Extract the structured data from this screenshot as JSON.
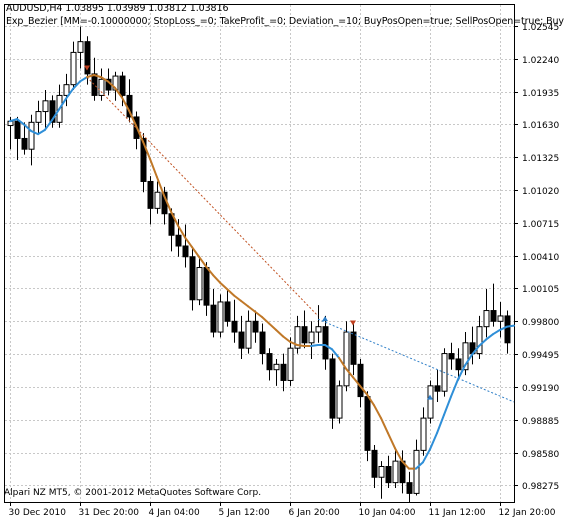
{
  "header": {
    "symbol_line": "AUDUSD,H4  1.03895 1.03989 1.03812 1.03816",
    "expert_line": "Exp_Bezier [MM=-0.10000000; StopLoss_=0; TakeProfit_=0; Deviation_=10; BuyPosOpen=true; SellPosOpen=true; Buy"
  },
  "footer": "Alpari NZ MT5, © 2001-2012 MetaQuotes Software Corp.",
  "colors": {
    "background": "#ffffff",
    "grid": "#c8c8c8",
    "bull_candle_fill": "#ffffff",
    "bear_candle_fill": "#000000",
    "candle_outline": "#000000",
    "bezier_up": "#2f8fd8",
    "bezier_down": "#c07828",
    "forecast_down": "#c05020",
    "forecast_up": "#2f7fc8",
    "sell_arrow": "#c04020",
    "buy_arrow": "#2f7fc8"
  },
  "chart_data": {
    "type": "candlestick",
    "symbol": "AUDUSD",
    "timeframe": "H4",
    "ylim": [
      0.9812,
      1.0275
    ],
    "y_ticks": [
      1.02545,
      1.0224,
      1.01935,
      1.0163,
      1.01325,
      1.0102,
      1.00715,
      1.0041,
      1.00105,
      0.998,
      0.99495,
      0.9919,
      0.98885,
      0.9858,
      0.98275
    ],
    "y_tick_labels": [
      "1.02545",
      "1.02240",
      "1.01935",
      "1.01630",
      "1.01325",
      "1.01020",
      "1.00715",
      "1.00410",
      "1.00105",
      "0.99800",
      "0.99495",
      "0.99190",
      "0.98885",
      "0.98580",
      "0.98275"
    ],
    "x_ticks": [
      {
        "index": 0,
        "label": "30 Dec 2010"
      },
      {
        "index": 10,
        "label": "31 Dec 20:00"
      },
      {
        "index": 20,
        "label": "4 Jan 04:00"
      },
      {
        "index": 30,
        "label": "5 Jan 12:00"
      },
      {
        "index": 40,
        "label": "6 Jan 20:00"
      },
      {
        "index": 50,
        "label": "10 Jan 04:00"
      },
      {
        "index": 60,
        "label": "11 Jan 12:00"
      },
      {
        "index": 70,
        "label": "12 Jan 20:00"
      }
    ],
    "candles": [
      {
        "o": 1.0162,
        "h": 1.017,
        "l": 1.014,
        "c": 1.0166
      },
      {
        "o": 1.0166,
        "h": 1.017,
        "l": 1.013,
        "c": 1.015
      },
      {
        "o": 1.015,
        "h": 1.0165,
        "l": 1.0135,
        "c": 1.014
      },
      {
        "o": 1.014,
        "h": 1.0172,
        "l": 1.0125,
        "c": 1.0165
      },
      {
        "o": 1.0165,
        "h": 1.0185,
        "l": 1.0155,
        "c": 1.0175
      },
      {
        "o": 1.0175,
        "h": 1.0195,
        "l": 1.016,
        "c": 1.0185
      },
      {
        "o": 1.0185,
        "h": 1.019,
        "l": 1.016,
        "c": 1.0165
      },
      {
        "o": 1.0165,
        "h": 1.02,
        "l": 1.016,
        "c": 1.019
      },
      {
        "o": 1.019,
        "h": 1.021,
        "l": 1.018,
        "c": 1.02
      },
      {
        "o": 1.02,
        "h": 1.024,
        "l": 1.0195,
        "c": 1.023
      },
      {
        "o": 1.023,
        "h": 1.0254,
        "l": 1.0215,
        "c": 1.024
      },
      {
        "o": 1.024,
        "h": 1.0245,
        "l": 1.02,
        "c": 1.021
      },
      {
        "o": 1.021,
        "h": 1.0225,
        "l": 1.0185,
        "c": 1.019
      },
      {
        "o": 1.019,
        "h": 1.0215,
        "l": 1.0185,
        "c": 1.0205
      },
      {
        "o": 1.0205,
        "h": 1.0215,
        "l": 1.019,
        "c": 1.0195
      },
      {
        "o": 1.0195,
        "h": 1.0212,
        "l": 1.0185,
        "c": 1.0208
      },
      {
        "o": 1.0208,
        "h": 1.0212,
        "l": 1.018,
        "c": 1.019
      },
      {
        "o": 1.019,
        "h": 1.0205,
        "l": 1.0165,
        "c": 1.017
      },
      {
        "o": 1.017,
        "h": 1.0175,
        "l": 1.014,
        "c": 1.015
      },
      {
        "o": 1.015,
        "h": 1.0155,
        "l": 1.01,
        "c": 1.011
      },
      {
        "o": 1.011,
        "h": 1.0115,
        "l": 1.007,
        "c": 1.0085
      },
      {
        "o": 1.0085,
        "h": 1.011,
        "l": 1.008,
        "c": 1.01
      },
      {
        "o": 1.01,
        "h": 1.0105,
        "l": 1.007,
        "c": 1.008
      },
      {
        "o": 1.008,
        "h": 1.0085,
        "l": 1.0045,
        "c": 1.006
      },
      {
        "o": 1.006,
        "h": 1.0075,
        "l": 1.004,
        "c": 1.005
      },
      {
        "o": 1.005,
        "h": 1.007,
        "l": 1.003,
        "c": 1.004
      },
      {
        "o": 1.004,
        "h": 1.0048,
        "l": 0.999,
        "c": 1.0
      },
      {
        "o": 1.0,
        "h": 1.004,
        "l": 0.9995,
        "c": 1.003
      },
      {
        "o": 1.003,
        "h": 1.0035,
        "l": 0.9985,
        "c": 0.9995
      },
      {
        "o": 0.9995,
        "h": 1.001,
        "l": 0.9965,
        "c": 0.997
      },
      {
        "o": 0.997,
        "h": 1.0005,
        "l": 0.9965,
        "c": 0.9998
      },
      {
        "o": 0.9998,
        "h": 1.001,
        "l": 0.9975,
        "c": 0.998
      },
      {
        "o": 0.998,
        "h": 1.0,
        "l": 0.996,
        "c": 0.997
      },
      {
        "o": 0.997,
        "h": 0.9985,
        "l": 0.9945,
        "c": 0.9955
      },
      {
        "o": 0.9955,
        "h": 0.999,
        "l": 0.995,
        "c": 0.998
      },
      {
        "o": 0.998,
        "h": 0.999,
        "l": 0.996,
        "c": 0.997
      },
      {
        "o": 0.997,
        "h": 0.9978,
        "l": 0.994,
        "c": 0.995
      },
      {
        "o": 0.995,
        "h": 0.9955,
        "l": 0.9925,
        "c": 0.9935
      },
      {
        "o": 0.9935,
        "h": 0.9945,
        "l": 0.992,
        "c": 0.994
      },
      {
        "o": 0.994,
        "h": 0.995,
        "l": 0.9915,
        "c": 0.9925
      },
      {
        "o": 0.9925,
        "h": 0.9965,
        "l": 0.992,
        "c": 0.9955
      },
      {
        "o": 0.9955,
        "h": 0.9985,
        "l": 0.995,
        "c": 0.9975
      },
      {
        "o": 0.9975,
        "h": 0.999,
        "l": 0.9955,
        "c": 0.996
      },
      {
        "o": 0.996,
        "h": 0.998,
        "l": 0.9945,
        "c": 0.997
      },
      {
        "o": 0.997,
        "h": 0.9995,
        "l": 0.996,
        "c": 0.9975
      },
      {
        "o": 0.9975,
        "h": 0.9985,
        "l": 0.9935,
        "c": 0.9945
      },
      {
        "o": 0.9945,
        "h": 0.995,
        "l": 0.988,
        "c": 0.989
      },
      {
        "o": 0.989,
        "h": 0.9925,
        "l": 0.9885,
        "c": 0.992
      },
      {
        "o": 0.992,
        "h": 0.998,
        "l": 0.9915,
        "c": 0.997
      },
      {
        "o": 0.997,
        "h": 0.9978,
        "l": 0.993,
        "c": 0.994
      },
      {
        "o": 0.994,
        "h": 0.9945,
        "l": 0.99,
        "c": 0.991
      },
      {
        "o": 0.991,
        "h": 0.9915,
        "l": 0.985,
        "c": 0.986
      },
      {
        "o": 0.986,
        "h": 0.9865,
        "l": 0.9825,
        "c": 0.9835
      },
      {
        "o": 0.9835,
        "h": 0.985,
        "l": 0.9815,
        "c": 0.9845
      },
      {
        "o": 0.9845,
        "h": 0.9855,
        "l": 0.9825,
        "c": 0.983
      },
      {
        "o": 0.983,
        "h": 0.986,
        "l": 0.9825,
        "c": 0.985
      },
      {
        "o": 0.985,
        "h": 0.986,
        "l": 0.982,
        "c": 0.983
      },
      {
        "o": 0.983,
        "h": 0.984,
        "l": 0.9812,
        "c": 0.982
      },
      {
        "o": 0.982,
        "h": 0.987,
        "l": 0.9818,
        "c": 0.986
      },
      {
        "o": 0.986,
        "h": 0.99,
        "l": 0.9855,
        "c": 0.989
      },
      {
        "o": 0.989,
        "h": 0.9925,
        "l": 0.9885,
        "c": 0.992
      },
      {
        "o": 0.992,
        "h": 0.9935,
        "l": 0.9905,
        "c": 0.9915
      },
      {
        "o": 0.9915,
        "h": 0.9955,
        "l": 0.991,
        "c": 0.995
      },
      {
        "o": 0.995,
        "h": 0.996,
        "l": 0.9935,
        "c": 0.9945
      },
      {
        "o": 0.9945,
        "h": 0.9955,
        "l": 0.9925,
        "c": 0.9935
      },
      {
        "o": 0.9935,
        "h": 0.997,
        "l": 0.993,
        "c": 0.996
      },
      {
        "o": 0.996,
        "h": 0.9975,
        "l": 0.994,
        "c": 0.995
      },
      {
        "o": 0.995,
        "h": 0.9985,
        "l": 0.9945,
        "c": 0.9975
      },
      {
        "o": 0.9975,
        "h": 1.001,
        "l": 0.9965,
        "c": 0.999
      },
      {
        "o": 0.999,
        "h": 1.0015,
        "l": 0.9975,
        "c": 0.998
      },
      {
        "o": 0.998,
        "h": 0.9998,
        "l": 0.9965,
        "c": 0.9985
      },
      {
        "o": 0.9985,
        "h": 0.999,
        "l": 0.995,
        "c": 0.996
      }
    ],
    "bezier_line": [
      1.0166,
      1.0168,
      1.0163,
      1.0157,
      1.0154,
      1.0158,
      1.0167,
      1.0177,
      1.0187,
      1.0196,
      1.0203,
      1.0207,
      1.0209,
      1.0207,
      1.0203,
      1.0197,
      1.0188,
      1.0176,
      1.0162,
      1.0147,
      1.0131,
      1.0114,
      1.0097,
      1.0082,
      1.0069,
      1.0058,
      1.0049,
      1.004,
      1.0031,
      1.0023,
      1.0016,
      1.001,
      1.0004,
      0.9999,
      0.9994,
      0.9989,
      0.9984,
      0.9978,
      0.9972,
      0.9966,
      0.9961,
      0.9958,
      0.9957,
      0.9957,
      0.9958,
      0.9958,
      0.9954,
      0.9946,
      0.9936,
      0.9928,
      0.992,
      0.9912,
      0.9902,
      0.989,
      0.9876,
      0.9862,
      0.985,
      0.9843,
      0.9843,
      0.9849,
      0.9861,
      0.9876,
      0.9893,
      0.991,
      0.9926,
      0.9939,
      0.9949,
      0.9957,
      0.9963,
      0.9968,
      0.9972,
      0.9975,
      0.9976
    ],
    "bezier_up_ranges": [
      [
        0,
        11
      ],
      [
        43,
        47
      ],
      [
        58,
        72
      ]
    ],
    "forecast_lines": [
      {
        "from_index": 11,
        "from_value": 1.0207,
        "to_index": 44,
        "to_value": 0.9985,
        "direction": "down"
      },
      {
        "from_index": 44,
        "from_value": 0.9982,
        "to_index": 72,
        "to_value": 0.9905,
        "direction": "up"
      }
    ],
    "signals": [
      {
        "index": 11,
        "value": 1.0215,
        "type": "sell"
      },
      {
        "index": 45,
        "value": 0.9983,
        "type": "buy"
      },
      {
        "index": 49,
        "value": 0.9978,
        "type": "sell"
      },
      {
        "index": 60,
        "value": 0.991,
        "type": "buy"
      }
    ]
  }
}
